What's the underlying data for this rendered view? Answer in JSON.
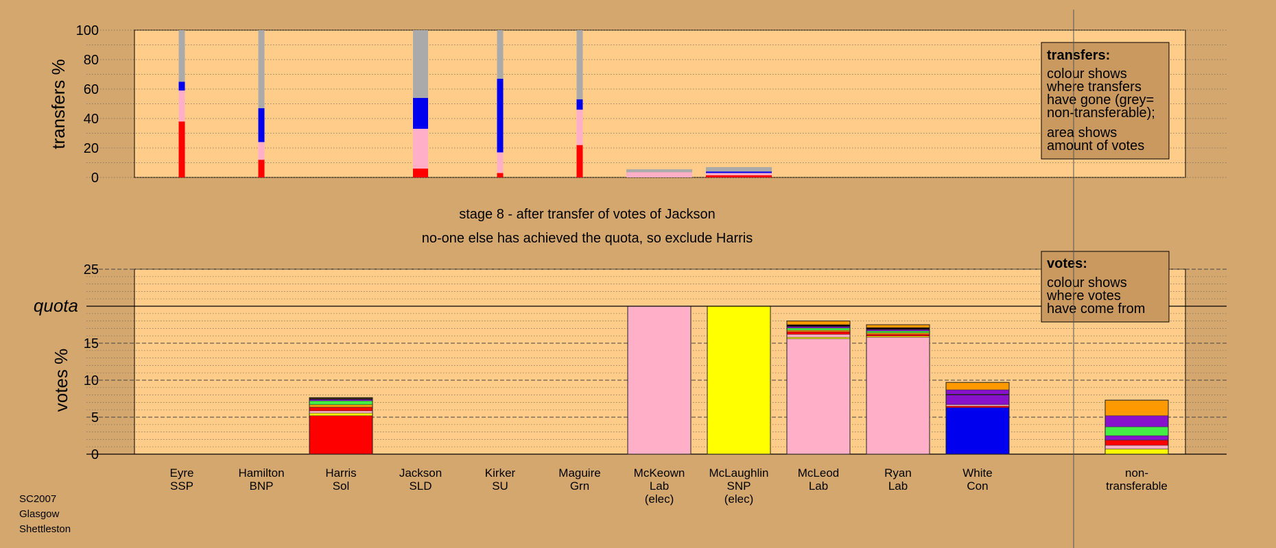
{
  "chart_data": [
    {
      "id": "transfers",
      "type": "bar",
      "stacked": true,
      "ylabel": "transfers %",
      "ylim": [
        0,
        100
      ],
      "yticks": [
        0,
        20,
        40,
        60,
        80,
        100
      ],
      "grid": "dotted every 10",
      "legend": {
        "title": "transfers:",
        "lines": [
          "colour shows",
          "where transfers",
          "have gone (grey=",
          "non-transferable);",
          "area shows",
          "amount of votes"
        ]
      },
      "note": "stacks list transfer destination colour and percent, bottom to top",
      "bars": [
        {
          "candidate": "Eyre",
          "width_share": "narrow",
          "stack": [
            {
              "color": "#ff0000",
              "value": 38
            },
            {
              "color": "#ffb0c8",
              "value": 21
            },
            {
              "color": "#0000ee",
              "value": 6
            },
            {
              "color": "#aaaaaa",
              "value": 35
            }
          ]
        },
        {
          "candidate": "Hamilton",
          "width_share": "narrow",
          "stack": [
            {
              "color": "#ff0000",
              "value": 12
            },
            {
              "color": "#ffb0c8",
              "value": 12
            },
            {
              "color": "#0000ee",
              "value": 23
            },
            {
              "color": "#aaaaaa",
              "value": 53
            }
          ]
        },
        {
          "candidate": "Jackson",
          "width_share": "wide",
          "stack": [
            {
              "color": "#ff0000",
              "value": 6
            },
            {
              "color": "#ffb0c8",
              "value": 27
            },
            {
              "color": "#0000ee",
              "value": 21
            },
            {
              "color": "#aaaaaa",
              "value": 46
            }
          ]
        },
        {
          "candidate": "Kirker",
          "width_share": "narrow",
          "stack": [
            {
              "color": "#ff0000",
              "value": 3
            },
            {
              "color": "#ffb0c8",
              "value": 14
            },
            {
              "color": "#0000ee",
              "value": 50
            },
            {
              "color": "#aaaaaa",
              "value": 33
            }
          ]
        },
        {
          "candidate": "Maguire",
          "width_share": "narrow",
          "stack": [
            {
              "color": "#ff0000",
              "value": 22
            },
            {
              "color": "#ffb0c8",
              "value": 24
            },
            {
              "color": "#0000ee",
              "value": 7
            },
            {
              "color": "#aaaaaa",
              "value": 47
            }
          ]
        },
        {
          "candidate": "McKeown",
          "width_share": "full",
          "stack": [
            {
              "color": "#ffb0c8",
              "value": 3.5
            },
            {
              "color": "#aaaaaa",
              "value": 2
            }
          ]
        },
        {
          "candidate": "McLaughlin",
          "width_share": "full",
          "stack": [
            {
              "color": "#ff0000",
              "value": 1.5
            },
            {
              "color": "#ffb0c8",
              "value": 1.5
            },
            {
              "color": "#0000ee",
              "value": 1
            },
            {
              "color": "#aaaaaa",
              "value": 3
            }
          ]
        }
      ]
    },
    {
      "id": "votes",
      "type": "bar",
      "stacked": true,
      "ylabel": "votes %",
      "ylim": [
        0,
        25
      ],
      "yticks": [
        0,
        5,
        10,
        15,
        20,
        25
      ],
      "quota": 20,
      "quota_label": "quota",
      "grid": "dotted every 1, dashed every 5",
      "legend": {
        "title": "votes:",
        "lines": [
          "colour shows",
          "where votes",
          "have come from"
        ]
      },
      "note": "stacks list vote origin colour and percent, bottom to top",
      "bars": [
        {
          "candidate": "Harris",
          "stack": [
            {
              "color": "#ff0000",
              "value": 5.2
            },
            {
              "color": "#ffff00",
              "value": 0.35
            },
            {
              "color": "#ffb0c8",
              "value": 0.3
            },
            {
              "color": "#ff0000",
              "value": 0.5
            },
            {
              "color": "#ff9900",
              "value": 0.35
            },
            {
              "color": "#44ee44",
              "value": 0.5
            },
            {
              "color": "#8811cc",
              "value": 0.2
            },
            {
              "color": "#000000",
              "value": 0.15
            },
            {
              "color": "#ff9900",
              "value": 0.1
            }
          ]
        },
        {
          "candidate": "McKeown",
          "stack": [
            {
              "color": "#ffb0c8",
              "value": 20
            }
          ]
        },
        {
          "candidate": "McLaughlin",
          "stack": [
            {
              "color": "#ffff00",
              "value": 20
            }
          ]
        },
        {
          "candidate": "McLeod",
          "stack": [
            {
              "color": "#ffb0c8",
              "value": 15.6
            },
            {
              "color": "#ffff00",
              "value": 0.2
            },
            {
              "color": "#ffb0c8",
              "value": 0.4
            },
            {
              "color": "#ff0000",
              "value": 0.35
            },
            {
              "color": "#ff9900",
              "value": 0.2
            },
            {
              "color": "#44ee44",
              "value": 0.3
            },
            {
              "color": "#8811cc",
              "value": 0.2
            },
            {
              "color": "#000000",
              "value": 0.25
            },
            {
              "color": "#ff9900",
              "value": 0.5
            }
          ]
        },
        {
          "candidate": "Ryan",
          "stack": [
            {
              "color": "#ffb0c8",
              "value": 15.8
            },
            {
              "color": "#ffff00",
              "value": 0.15
            },
            {
              "color": "#ff0000",
              "value": 0.25
            },
            {
              "color": "#ff9900",
              "value": 0.2
            },
            {
              "color": "#44ee44",
              "value": 0.25
            },
            {
              "color": "#8811cc",
              "value": 0.2
            },
            {
              "color": "#000000",
              "value": 0.25
            },
            {
              "color": "#ff9900",
              "value": 0.4
            }
          ]
        },
        {
          "candidate": "White",
          "stack": [
            {
              "color": "#0000ee",
              "value": 6.3
            },
            {
              "color": "#ff0000",
              "value": 0.2
            },
            {
              "color": "#ffb0c8",
              "value": 0.2
            },
            {
              "color": "#8811cc",
              "value": 1.3
            },
            {
              "color": "#000000",
              "value": 0.1
            },
            {
              "color": "#8811cc",
              "value": 0.6
            },
            {
              "color": "#ff9900",
              "value": 1
            }
          ]
        },
        {
          "candidate": "non-transferable",
          "stack": [
            {
              "color": "#ffff00",
              "value": 0.7
            },
            {
              "color": "#ffb0c8",
              "value": 0.5
            },
            {
              "color": "#ff0000",
              "value": 0.7
            },
            {
              "color": "#8811cc",
              "value": 0.6
            },
            {
              "color": "#44ee44",
              "value": 1.2
            },
            {
              "color": "#8811cc",
              "value": 1.5
            },
            {
              "color": "#ff9900",
              "value": 2.1
            }
          ]
        }
      ]
    }
  ],
  "stage_text": "stage 8 - after transfer of votes of Jackson",
  "exclusion_text": "no-one else has achieved the quota, so exclude Harris",
  "candidates": [
    {
      "key": "Eyre",
      "lines": [
        "Eyre",
        "SSP"
      ]
    },
    {
      "key": "Hamilton",
      "lines": [
        "Hamilton",
        "BNP"
      ]
    },
    {
      "key": "Harris",
      "lines": [
        "Harris",
        "Sol"
      ]
    },
    {
      "key": "Jackson",
      "lines": [
        "Jackson",
        "SLD"
      ]
    },
    {
      "key": "Kirker",
      "lines": [
        "Kirker",
        "SU"
      ]
    },
    {
      "key": "Maguire",
      "lines": [
        "Maguire",
        "Grn"
      ]
    },
    {
      "key": "McKeown",
      "lines": [
        "McKeown",
        "Lab",
        "(elec)"
      ]
    },
    {
      "key": "McLaughlin",
      "lines": [
        "McLaughlin",
        "SNP",
        "(elec)"
      ]
    },
    {
      "key": "McLeod",
      "lines": [
        "McLeod",
        "Lab"
      ]
    },
    {
      "key": "Ryan",
      "lines": [
        "Ryan",
        "Lab"
      ]
    },
    {
      "key": "White",
      "lines": [
        "White",
        "Con"
      ]
    },
    {
      "key": "non-transferable",
      "lines": [
        "non-",
        "transferable"
      ]
    }
  ],
  "footer": [
    "SC2007",
    "Glasgow",
    "Shettleston"
  ],
  "colors": {
    "page_bg": "#d4a76f",
    "plot_bg": "#ffcc8a",
    "legend_bg": "#c9995f",
    "grey": "#aaaaaa"
  }
}
